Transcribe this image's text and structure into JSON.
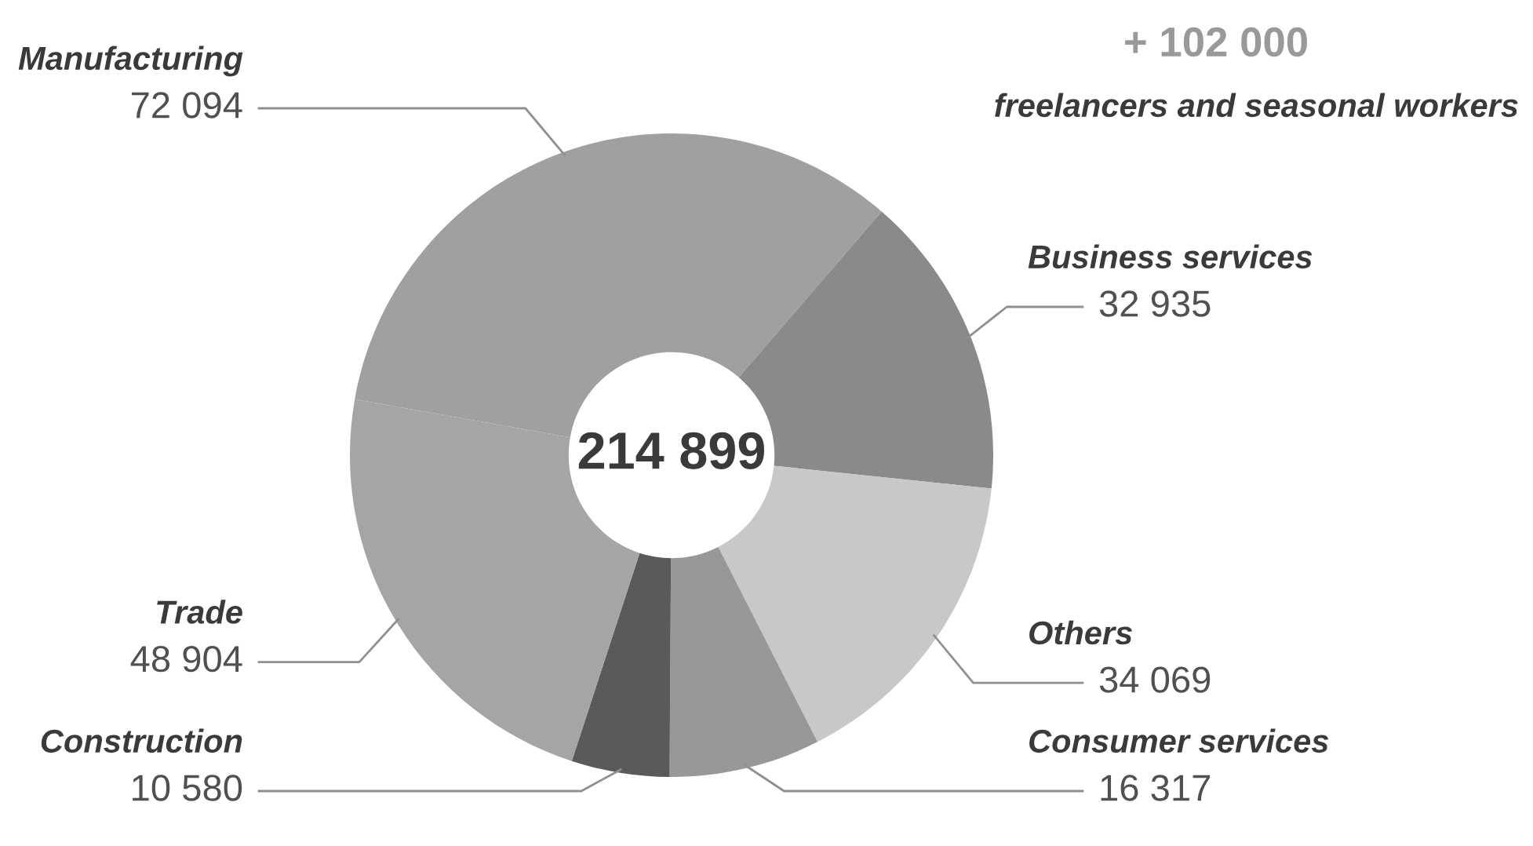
{
  "chart_data": {
    "type": "donut",
    "categories": [
      "Manufacturing",
      "Business services",
      "Others",
      "Consumer services",
      "Construction",
      "Trade"
    ],
    "values": [
      72094,
      32935,
      34069,
      16317,
      10580,
      48904
    ],
    "value_labels": [
      "72 094",
      "32 935",
      "34 069",
      "16 317",
      "10 580",
      "48 904"
    ],
    "colors": [
      "#a0a0a0",
      "#8a8a8a",
      "#c8c8c8",
      "#989898",
      "#5a5a5a",
      "#a5a5a5"
    ],
    "annotations": [
      "214 899",
      "+ 102 000",
      "freelancers and seasonal workers"
    ]
  }
}
